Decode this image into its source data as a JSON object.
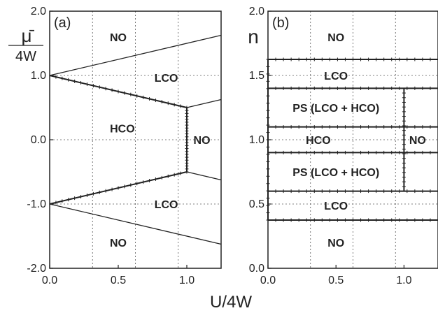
{
  "chart_data": [
    {
      "type": "line",
      "panel_label": "(a)",
      "ylabel_symbol": "μ̄",
      "ylabel_denominator": "4W",
      "xlabel": "U/4W",
      "xlim": [
        0.0,
        1.25
      ],
      "ylim": [
        -2.0,
        2.0
      ],
      "x_ticks": [
        "0.0",
        "0.5",
        "1.0"
      ],
      "x_tick_values": [
        0.0,
        0.5,
        1.0
      ],
      "y_ticks": [
        "2.0",
        "1.0",
        "0.0",
        "-1.0",
        "-2.0"
      ],
      "y_tick_values": [
        2.0,
        1.0,
        0.0,
        -1.0,
        -2.0
      ],
      "grid": true,
      "boundaries": [
        {
          "x": [
            0.0,
            1.25
          ],
          "y": [
            1.0,
            1.625
          ]
        },
        {
          "x": [
            0.0,
            1.0
          ],
          "y": [
            1.0,
            0.5
          ],
          "markers": true
        },
        {
          "x": [
            1.0,
            1.25
          ],
          "y": [
            0.5,
            0.625
          ]
        },
        {
          "x": [
            1.0,
            1.0
          ],
          "y": [
            0.5,
            -0.5
          ],
          "markers": true
        },
        {
          "x": [
            0.0,
            1.0
          ],
          "y": [
            -1.0,
            -0.5
          ],
          "markers": true
        },
        {
          "x": [
            1.0,
            1.25
          ],
          "y": [
            -0.5,
            -0.625
          ]
        },
        {
          "x": [
            0.0,
            1.25
          ],
          "y": [
            -1.0,
            -1.625
          ]
        }
      ],
      "regions": [
        {
          "label": "NO",
          "x": 0.5,
          "y": 1.6
        },
        {
          "label": "LCO",
          "x": 0.85,
          "y": 0.97
        },
        {
          "label": "HCO",
          "x": 0.53,
          "y": 0.18
        },
        {
          "label": "NO",
          "x": 1.11,
          "y": 0.0
        },
        {
          "label": "LCO",
          "x": 0.85,
          "y": -1.0
        },
        {
          "label": "NO",
          "x": 0.5,
          "y": -1.6
        }
      ]
    },
    {
      "type": "line",
      "panel_label": "(b)",
      "ylabel": "n",
      "xlabel": "U/4W",
      "xlim": [
        0.0,
        1.25
      ],
      "ylim": [
        0.0,
        2.0
      ],
      "x_ticks": [
        "0.0",
        "0.5",
        "1.0"
      ],
      "x_tick_values": [
        0.0,
        0.5,
        1.0
      ],
      "y_ticks": [
        "2.0",
        "1.5",
        "1.0",
        "0.5",
        "0.0"
      ],
      "y_tick_values": [
        2.0,
        1.5,
        1.0,
        0.5,
        0.0
      ],
      "grid": true,
      "boundaries": [
        {
          "x": [
            0.0,
            1.25
          ],
          "y": [
            1.625,
            1.625
          ],
          "markers": true
        },
        {
          "x": [
            0.0,
            1.25
          ],
          "y": [
            1.4,
            1.4
          ],
          "markers": true
        },
        {
          "x": [
            0.0,
            1.25
          ],
          "y": [
            1.1,
            1.1
          ],
          "markers": true
        },
        {
          "x": [
            0.0,
            1.25
          ],
          "y": [
            0.9,
            0.9
          ],
          "markers": true
        },
        {
          "x": [
            0.0,
            1.25
          ],
          "y": [
            0.6,
            0.6
          ],
          "markers": true
        },
        {
          "x": [
            0.0,
            1.25
          ],
          "y": [
            0.375,
            0.375
          ],
          "markers": true
        },
        {
          "x": [
            1.0,
            1.0
          ],
          "y": [
            0.6,
            1.4
          ],
          "markers": true
        },
        {
          "x": [
            0.0,
            0.0
          ],
          "y": [
            0.375,
            1.625
          ],
          "markers": true
        }
      ],
      "regions": [
        {
          "label": "NO",
          "x": 0.5,
          "y": 1.8
        },
        {
          "label": "LCO",
          "x": 0.5,
          "y": 1.5
        },
        {
          "label": "PS (LCO + HCO)",
          "x": 0.5,
          "y": 1.25
        },
        {
          "label": "HCO",
          "x": 0.37,
          "y": 1.0
        },
        {
          "label": "NO",
          "x": 1.1,
          "y": 1.0
        },
        {
          "label": "PS (LCO + HCO)",
          "x": 0.5,
          "y": 0.75
        },
        {
          "label": "LCO",
          "x": 0.5,
          "y": 0.49
        },
        {
          "label": "NO",
          "x": 0.5,
          "y": 0.2
        }
      ]
    }
  ]
}
